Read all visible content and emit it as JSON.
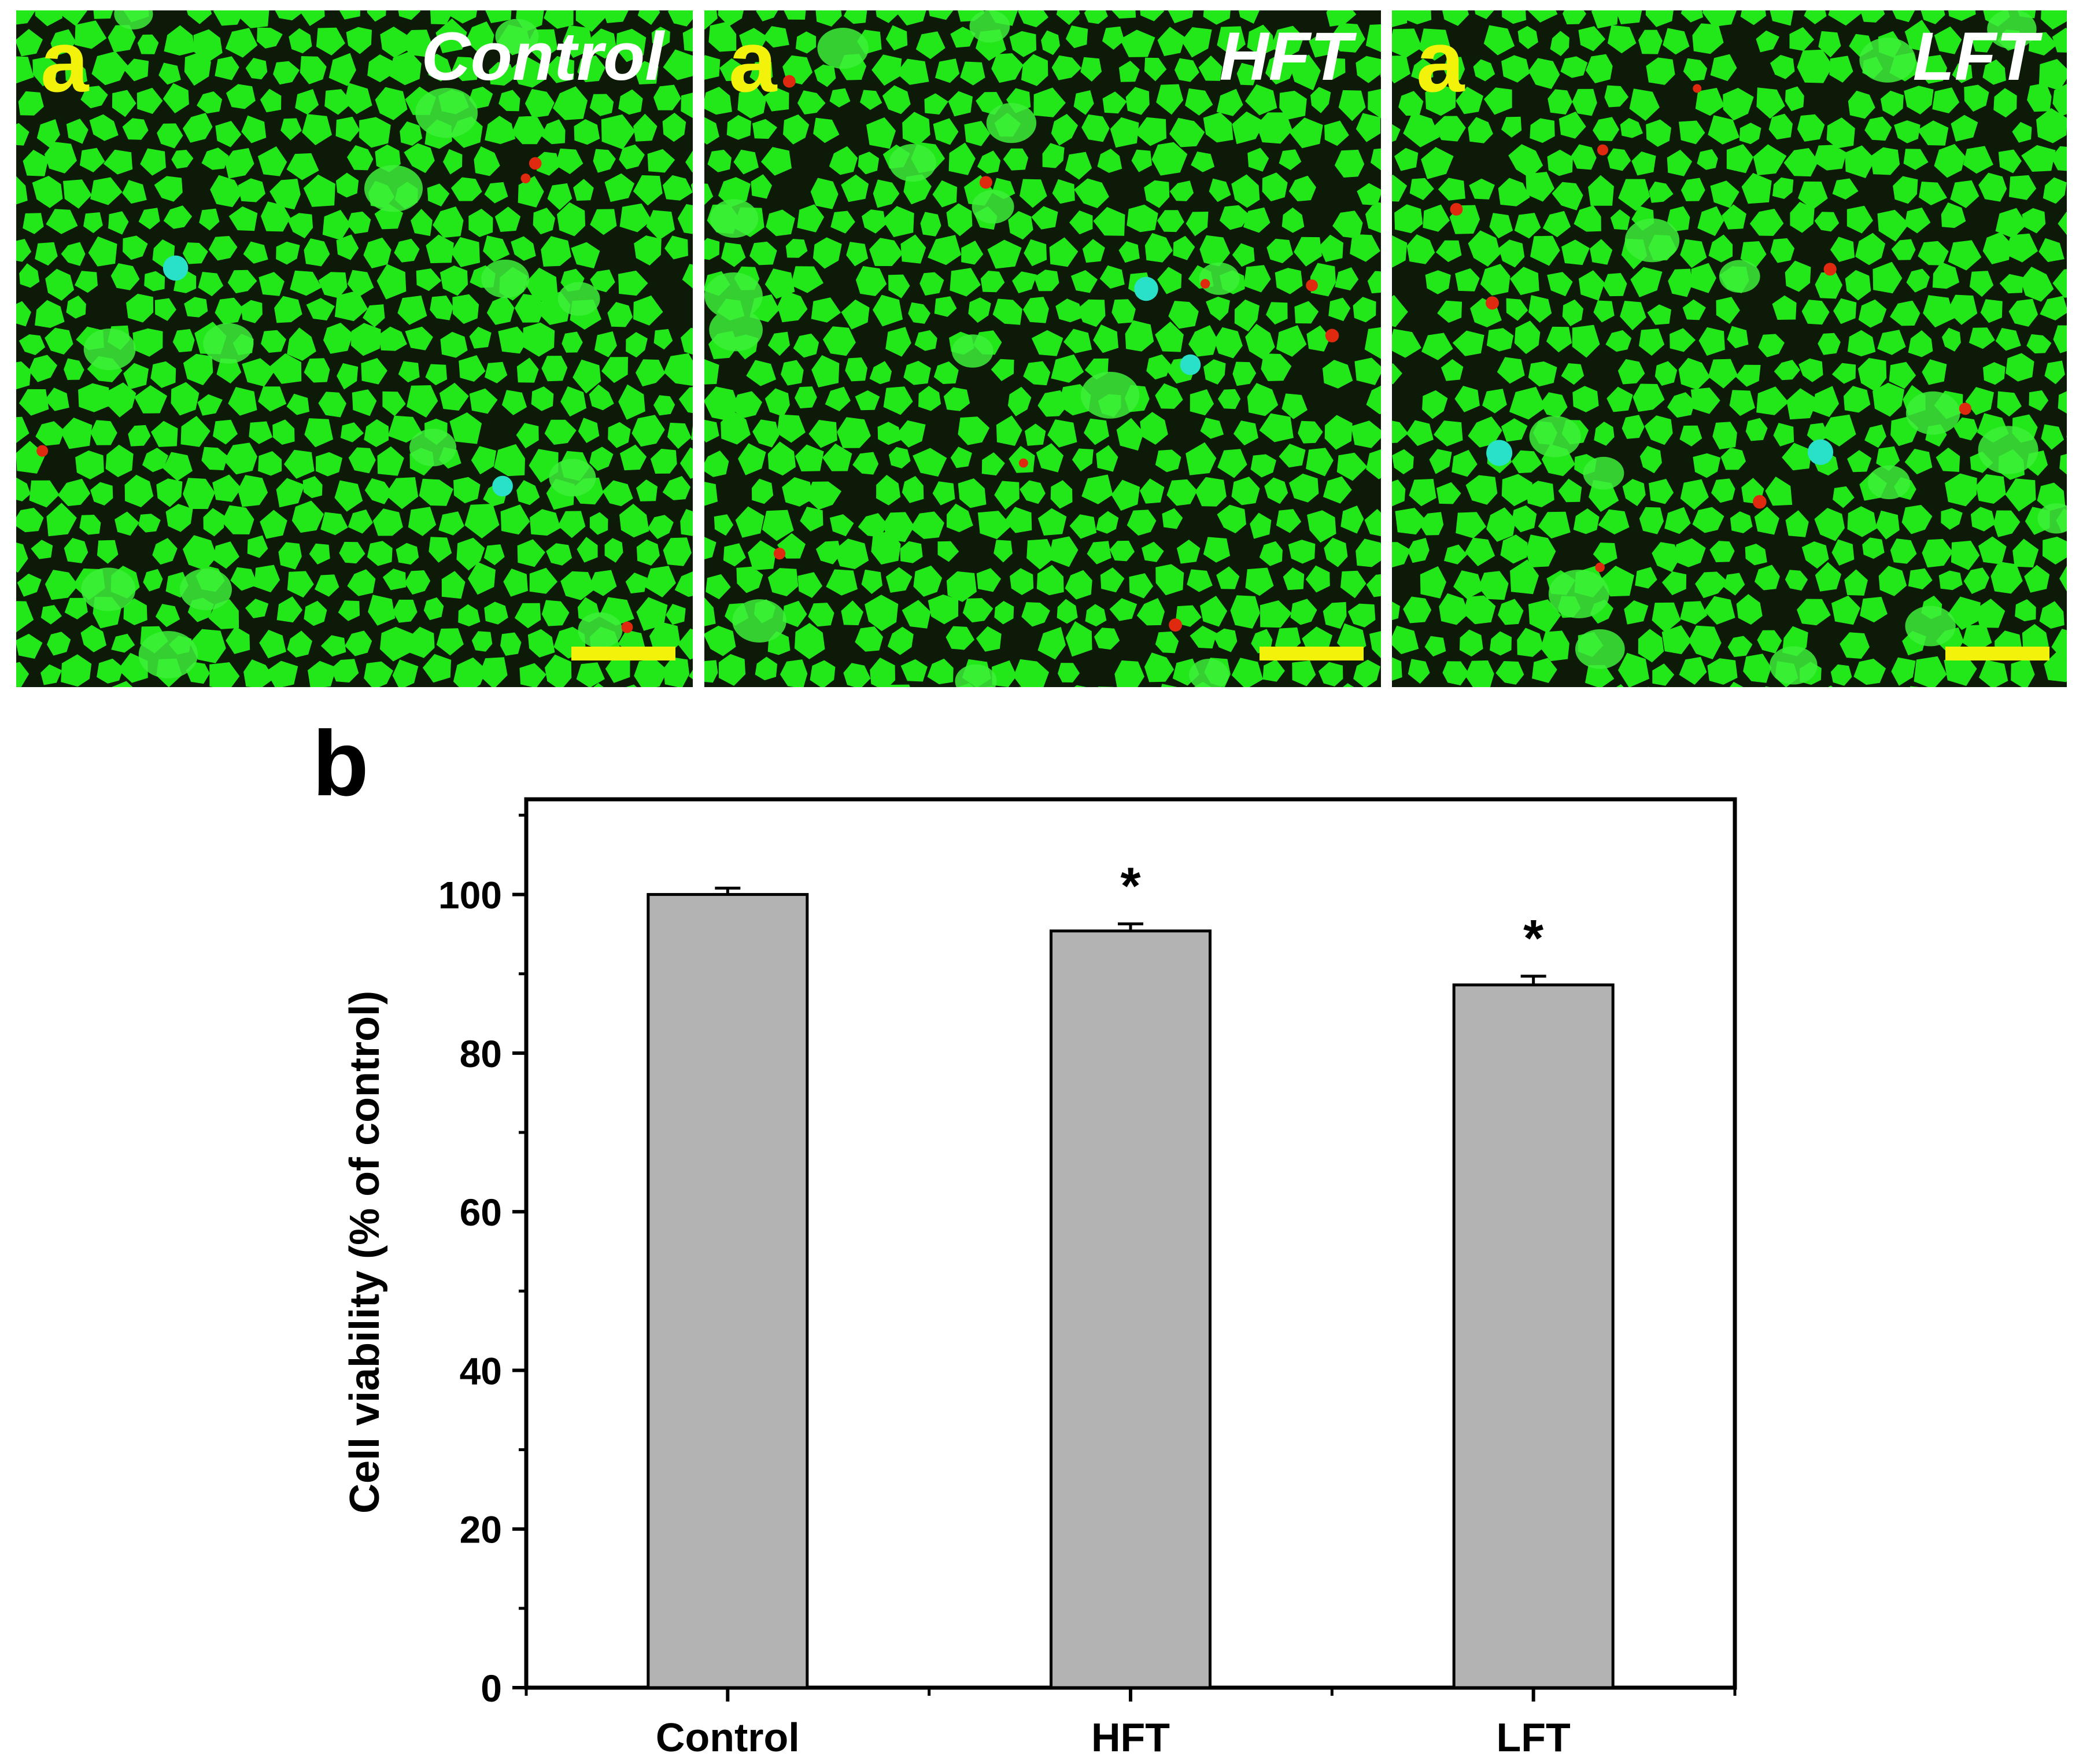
{
  "colors": {
    "cell_green": "#22e81a",
    "cell_bright": "#3df03a",
    "background_dark": "#0c1a07",
    "dead_cell_red": "#e02a10",
    "cyan_spot": "#29e0c8",
    "panel_letter": "#f2f20a",
    "scale_bar": "#f2f20a",
    "label_white": "#ffffff",
    "bar_fill": "#b3b3b3",
    "axis": "#000000"
  },
  "micrographs": [
    {
      "panel_letter": "a",
      "label": "Control",
      "icon": "confocal-micrograph"
    },
    {
      "panel_letter": "a",
      "label": "HFT",
      "icon": "confocal-micrograph"
    },
    {
      "panel_letter": "a",
      "label": "LFT",
      "icon": "confocal-micrograph"
    }
  ],
  "chart_panel_letter": "b",
  "chart_data": {
    "type": "bar",
    "categories": [
      "Control",
      "HFT",
      "LFT"
    ],
    "values": [
      100,
      95.4,
      88.6
    ],
    "errors": [
      0.8,
      0.9,
      1.1
    ],
    "significance": [
      "",
      "*",
      "*"
    ],
    "title": "",
    "xlabel": "",
    "ylabel": "Cell viability (% of control)",
    "ylim": [
      0,
      112
    ],
    "yticks": [
      0,
      20,
      40,
      60,
      80,
      100
    ],
    "ytick_labels": [
      "0",
      "20",
      "40",
      "60",
      "80",
      "100"
    ],
    "grid": false,
    "legend": "none"
  }
}
